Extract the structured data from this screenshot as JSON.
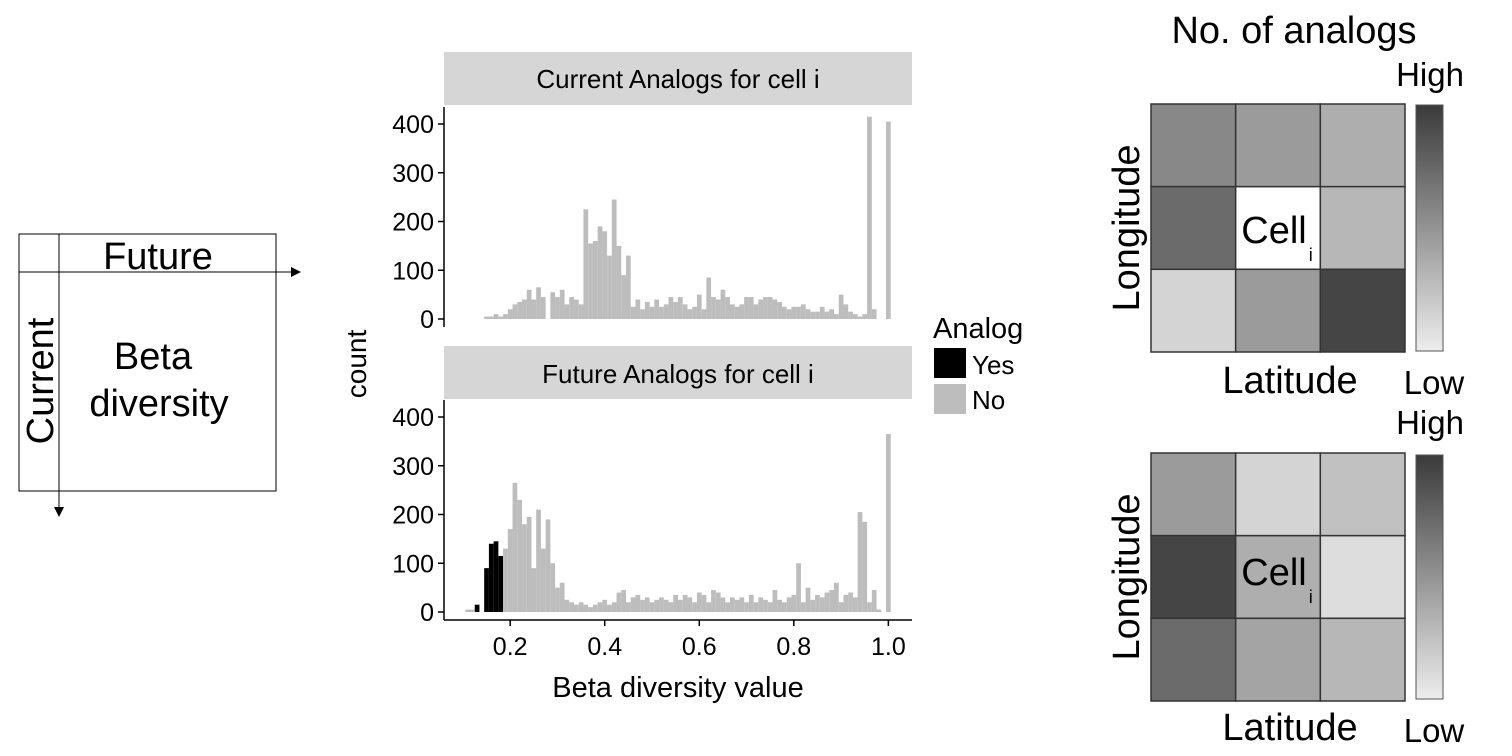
{
  "matrix": {
    "top_label": "Future",
    "side_label": "Current",
    "center_line1": "Beta",
    "center_line2": "diversity"
  },
  "histogram": {
    "ylabel": "count",
    "xlabel": "Beta diversity value",
    "legend_title": "Analog",
    "legend_items": [
      {
        "label": "Yes",
        "color": "#000000"
      },
      {
        "label": "No",
        "color": "#bdbdbd"
      }
    ],
    "strip_color": "#d6d6d6"
  },
  "heatmap": {
    "title": "No. of analogs",
    "xlabel": "Latitude",
    "ylabel": "Longitude",
    "scale_high": "High",
    "scale_low": "Low",
    "cell_text": "Cell",
    "cell_sub": "i"
  },
  "chart_data": [
    {
      "type": "bar",
      "title": "Current Analogs for cell i",
      "bin_width": 0.01,
      "xlim": [
        0.06,
        1.05
      ],
      "ylim": [
        0,
        435
      ],
      "x_ticks": [
        0.2,
        0.4,
        0.6,
        0.8,
        1.0
      ],
      "x_tick_labels": [
        "0.2",
        "0.4",
        "0.6",
        "0.8",
        "1.0"
      ],
      "y_ticks": [
        0,
        100,
        200,
        300,
        400
      ],
      "series": [
        {
          "name": "No",
          "color": "#bdbdbd",
          "x": [
            0.15,
            0.16,
            0.17,
            0.18,
            0.19,
            0.2,
            0.21,
            0.22,
            0.23,
            0.24,
            0.25,
            0.26,
            0.27,
            0.28,
            0.29,
            0.3,
            0.31,
            0.32,
            0.33,
            0.34,
            0.35,
            0.36,
            0.37,
            0.38,
            0.39,
            0.4,
            0.41,
            0.42,
            0.43,
            0.44,
            0.45,
            0.46,
            0.47,
            0.48,
            0.49,
            0.5,
            0.51,
            0.52,
            0.53,
            0.54,
            0.55,
            0.56,
            0.57,
            0.58,
            0.59,
            0.6,
            0.61,
            0.62,
            0.63,
            0.64,
            0.65,
            0.66,
            0.67,
            0.68,
            0.69,
            0.7,
            0.71,
            0.72,
            0.73,
            0.74,
            0.75,
            0.76,
            0.77,
            0.78,
            0.79,
            0.8,
            0.81,
            0.82,
            0.83,
            0.84,
            0.85,
            0.86,
            0.87,
            0.88,
            0.89,
            0.9,
            0.91,
            0.92,
            0.93,
            0.94,
            0.95,
            0.96,
            0.97,
            0.98,
            0.99,
            1.0
          ],
          "values": [
            5,
            5,
            10,
            5,
            10,
            20,
            30,
            35,
            40,
            60,
            40,
            65,
            45,
            0,
            55,
            45,
            60,
            30,
            45,
            40,
            30,
            225,
            155,
            160,
            190,
            180,
            130,
            245,
            150,
            90,
            130,
            25,
            40,
            20,
            35,
            25,
            40,
            25,
            30,
            45,
            35,
            45,
            30,
            20,
            25,
            50,
            20,
            85,
            45,
            40,
            60,
            45,
            30,
            25,
            30,
            45,
            45,
            30,
            40,
            45,
            45,
            40,
            35,
            25,
            20,
            25,
            25,
            30,
            20,
            15,
            15,
            25,
            15,
            20,
            10,
            50,
            30,
            15,
            10,
            5,
            10,
            415,
            20,
            0,
            0,
            405
          ]
        }
      ]
    },
    {
      "type": "bar",
      "title": "Future Analogs for cell i",
      "bin_width": 0.01,
      "xlim": [
        0.06,
        1.05
      ],
      "ylim": [
        0,
        435
      ],
      "x_ticks": [
        0.2,
        0.4,
        0.6,
        0.8,
        1.0
      ],
      "x_tick_labels": [
        "0.2",
        "0.4",
        "0.6",
        "0.8",
        "1.0"
      ],
      "y_ticks": [
        0,
        100,
        200,
        300,
        400
      ],
      "series": [
        {
          "name": "Yes",
          "color": "#000000",
          "x": [
            0.13,
            0.14,
            0.15,
            0.16,
            0.17,
            0.18
          ],
          "values": [
            15,
            0,
            90,
            140,
            145,
            115
          ]
        },
        {
          "name": "No",
          "color": "#bdbdbd",
          "x": [
            0.11,
            0.12,
            0.19,
            0.2,
            0.21,
            0.22,
            0.23,
            0.24,
            0.25,
            0.26,
            0.27,
            0.28,
            0.29,
            0.3,
            0.31,
            0.32,
            0.33,
            0.34,
            0.35,
            0.36,
            0.37,
            0.38,
            0.39,
            0.4,
            0.41,
            0.42,
            0.43,
            0.44,
            0.45,
            0.46,
            0.47,
            0.48,
            0.49,
            0.5,
            0.51,
            0.52,
            0.53,
            0.54,
            0.55,
            0.56,
            0.57,
            0.58,
            0.59,
            0.6,
            0.61,
            0.62,
            0.63,
            0.64,
            0.65,
            0.66,
            0.67,
            0.68,
            0.69,
            0.7,
            0.71,
            0.72,
            0.73,
            0.74,
            0.75,
            0.76,
            0.77,
            0.78,
            0.79,
            0.8,
            0.81,
            0.82,
            0.83,
            0.84,
            0.85,
            0.86,
            0.87,
            0.88,
            0.89,
            0.9,
            0.91,
            0.92,
            0.93,
            0.94,
            0.95,
            0.96,
            0.97,
            0.98,
            0.99,
            1.0
          ],
          "values": [
            5,
            5,
            130,
            170,
            265,
            230,
            180,
            195,
            90,
            210,
            130,
            190,
            100,
            50,
            60,
            25,
            20,
            15,
            20,
            15,
            10,
            15,
            20,
            25,
            15,
            20,
            40,
            45,
            20,
            30,
            35,
            25,
            30,
            20,
            25,
            30,
            25,
            20,
            35,
            25,
            35,
            30,
            20,
            40,
            35,
            20,
            45,
            40,
            30,
            20,
            30,
            25,
            30,
            20,
            35,
            20,
            30,
            25,
            20,
            45,
            25,
            20,
            30,
            35,
            100,
            20,
            50,
            25,
            35,
            30,
            40,
            45,
            60,
            20,
            35,
            40,
            30,
            205,
            185,
            20,
            45,
            5,
            0,
            365
          ]
        }
      ]
    },
    {
      "type": "heatmap",
      "rows": 3,
      "cols": 3,
      "values": [
        [
          0.55,
          0.45,
          0.35
        ],
        [
          0.7,
          null,
          0.3
        ],
        [
          0.15,
          0.45,
          0.9
        ]
      ],
      "center_label": "Cell i"
    },
    {
      "type": "heatmap",
      "rows": 3,
      "cols": 3,
      "values": [
        [
          0.45,
          0.15,
          0.25
        ],
        [
          0.9,
          0.35,
          0.1
        ],
        [
          0.7,
          0.4,
          0.3
        ]
      ],
      "center_label": "Cell i"
    }
  ]
}
